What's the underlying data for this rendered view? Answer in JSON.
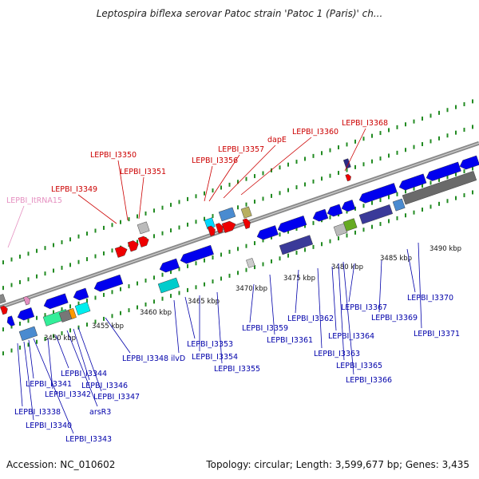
{
  "title": "Leptospira biflexa serovar Patoc strain 'Patoc 1 (Paris)' ch...",
  "footer": {
    "accession": "Accession: NC_010602",
    "summary": "Topology: circular; Length: 3,599,677 bp; Genes: 3,435"
  },
  "colors": {
    "label_red": "#cc0000",
    "label_blue": "#0000aa",
    "label_pink": "#e58fc0",
    "gene_blue": "#0000ee",
    "gene_red": "#ee0000",
    "backbone": "#8a8a8a",
    "tick_green": "#228b22"
  },
  "scale": [
    "3450 kbp",
    "3455 kbp",
    "3460 kbp",
    "3465 kbp",
    "3470 kbp",
    "3475 kbp",
    "3480 kbp",
    "3485 kbp",
    "3490 kbp"
  ],
  "top_labels": [
    {
      "text": "LEPBI_ItRNA15",
      "color": "pink"
    },
    {
      "text": "LEPBI_I3349",
      "color": "red"
    },
    {
      "text": "LEPBI_I3350",
      "color": "red"
    },
    {
      "text": "LEPBI_I3351",
      "color": "red"
    },
    {
      "text": "LEPBI_I3356",
      "color": "red"
    },
    {
      "text": "LEPBI_I3357",
      "color": "red"
    },
    {
      "text": "dapE",
      "color": "red"
    },
    {
      "text": "LEPBI_I3360",
      "color": "red"
    },
    {
      "text": "LEPBI_I3368",
      "color": "red"
    }
  ],
  "bottom_labels": [
    "LEPBI_I3338",
    "LEPBI_I3340",
    "LEPBI_I3341",
    "LEPBI_I3342",
    "LEPBI_I3343",
    "LEPBI_I3344",
    "arsR3",
    "LEPBI_I3346",
    "LEPBI_I3347",
    "LEPBI_I3348",
    "ilvD",
    "LEPBI_I3353",
    "LEPBI_I3354",
    "LEPBI_I3355",
    "LEPBI_I3359",
    "LEPBI_I3361",
    "LEPBI_I3362",
    "LEPBI_I3363",
    "LEPBI_I3364",
    "LEPBI_I3365",
    "LEPBI_I3366",
    "LEPBI_I3367",
    "LEPBI_I3369",
    "LEPBI_I3370",
    "LEPBI_I3371"
  ]
}
